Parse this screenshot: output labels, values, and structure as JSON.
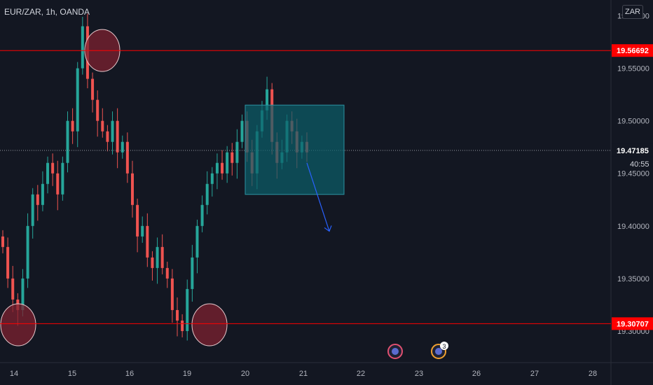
{
  "header": {
    "symbol": "EUR/ZAR, 1h, OANDA",
    "currency": "ZAR"
  },
  "colors": {
    "background": "#131722",
    "up": "#26a69a",
    "down": "#ef5350",
    "level_line": "#ff0000",
    "box_fill": "#0b5f6a",
    "box_border": "#2c93a3",
    "arrow": "#2962ff",
    "circle_fill": "#7d2230",
    "axis_text": "#b2b5be"
  },
  "chart_data": {
    "type": "candlestick",
    "title": "EUR/ZAR, 1h, OANDA",
    "y_axis": {
      "position": "right",
      "ylim": [
        19.27,
        19.615
      ],
      "ticks": [
        "19.60000",
        "19.55000",
        "19.50000",
        "19.45000",
        "19.40000",
        "19.35000",
        "19.30000"
      ]
    },
    "x_axis": {
      "ticks": [
        "14",
        "15",
        "16",
        "19",
        "20",
        "21",
        "22",
        "23",
        "26",
        "27",
        "28"
      ]
    },
    "levels": [
      {
        "label": "19.56692",
        "value": 19.56692
      },
      {
        "label": "19.30707",
        "value": 19.30707
      }
    ],
    "current_price": {
      "label": "19.47185",
      "value": 19.47185,
      "countdown": "40:55"
    },
    "annotations": {
      "circles": [
        {
          "x": "15",
          "y": 19.567,
          "type": "swing-high"
        },
        {
          "x": "14",
          "y": 19.306,
          "type": "swing-low"
        },
        {
          "x": "19",
          "y": 19.306,
          "type": "swing-low"
        }
      ],
      "box": {
        "x_start": "20",
        "x_end": "21",
        "y_top": 19.515,
        "y_bottom": 19.43
      },
      "arrow": {
        "x_start": "21",
        "y_start": 19.46,
        "x_end": "21",
        "y_end": 19.395
      },
      "event_icons": [
        "flag-icon",
        "flag-icon"
      ],
      "event_badge": "3"
    },
    "closes": [
      19.38,
      19.35,
      19.33,
      19.32,
      19.35,
      19.4,
      19.43,
      19.42,
      19.44,
      19.46,
      19.45,
      19.43,
      19.46,
      19.5,
      19.49,
      19.55,
      19.59,
      19.54,
      19.52,
      19.5,
      19.49,
      19.48,
      19.5,
      19.47,
      19.48,
      19.45,
      19.42,
      19.39,
      19.4,
      19.37,
      19.36,
      19.38,
      19.36,
      19.35,
      19.32,
      19.31,
      19.3,
      19.34,
      19.37,
      19.4,
      19.42,
      19.44,
      19.45,
      19.46,
      19.45,
      19.47,
      19.46,
      19.48,
      19.5,
      19.47,
      19.45,
      19.49,
      19.51,
      19.53,
      19.48,
      19.46,
      19.47,
      19.5,
      19.49,
      19.47,
      19.48,
      19.47
    ]
  }
}
